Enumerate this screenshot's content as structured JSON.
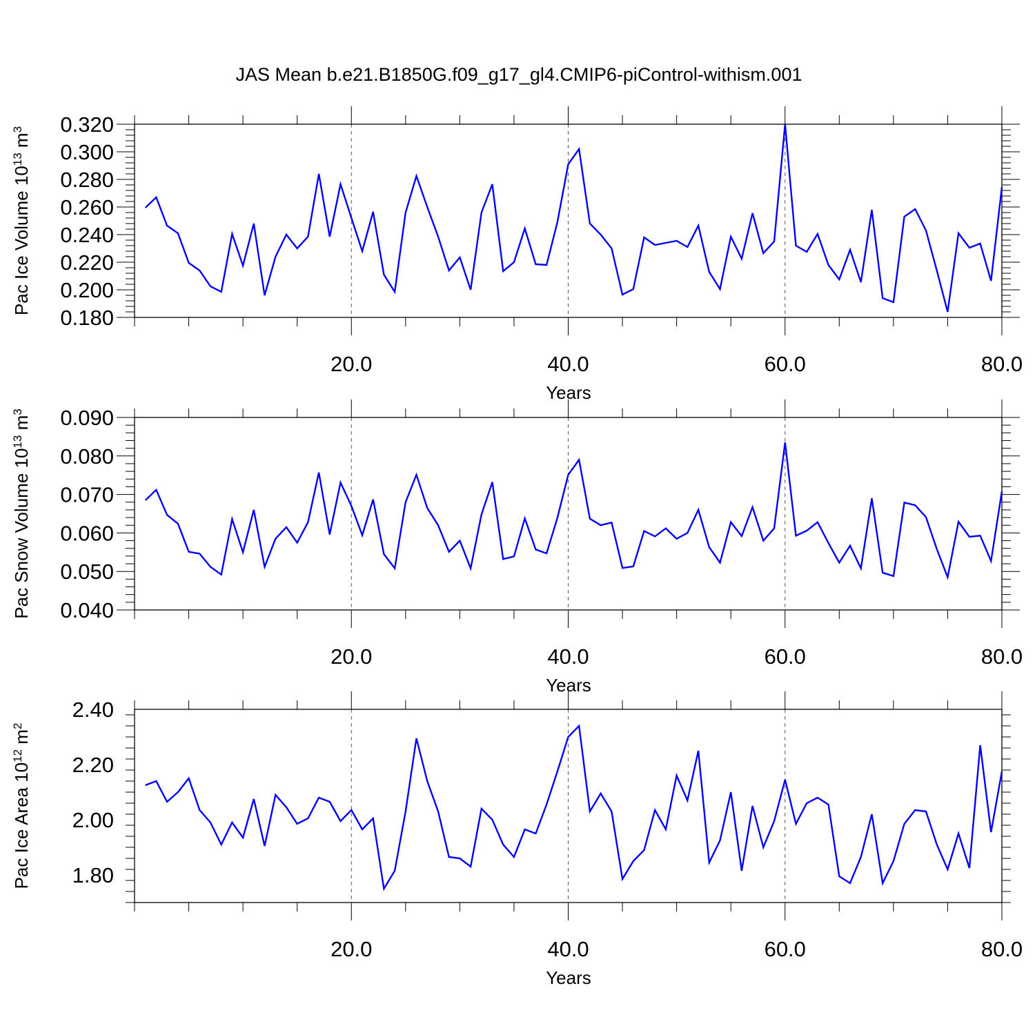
{
  "title": "JAS Mean b.e21.B1850G.f09_g17_gl4.CMIP6-piControl-withism.001",
  "colors": {
    "series": "#0000ff",
    "axis": "#000000",
    "grid": "#555555"
  },
  "chart_data": [
    {
      "type": "line",
      "ylabel": {
        "text": "Pac Ice Volume 10",
        "exp": "13",
        "unit": " m",
        "unit_exp": "3"
      },
      "xlabel": "Years",
      "xlim": [
        0,
        80
      ],
      "ylim": [
        0.18,
        0.32
      ],
      "yticks": [
        "0.180",
        "0.200",
        "0.220",
        "0.240",
        "0.260",
        "0.280",
        "0.300",
        "0.320"
      ],
      "xticks": [
        "20.0",
        "40.0",
        "60.0",
        "80.0"
      ],
      "vgrid": [
        20,
        40,
        60
      ],
      "x_start": 1,
      "values": [
        0.2595,
        0.267,
        0.2465,
        0.241,
        0.2195,
        0.214,
        0.2025,
        0.1985,
        0.2405,
        0.2175,
        0.248,
        0.196,
        0.224,
        0.24,
        0.23,
        0.2385,
        0.284,
        0.2385,
        0.2765,
        0.252,
        0.228,
        0.2565,
        0.211,
        0.1985,
        0.256,
        0.2825,
        0.26,
        0.2385,
        0.214,
        0.2235,
        0.2,
        0.256,
        0.2765,
        0.2135,
        0.22,
        0.2445,
        0.2185,
        0.218,
        0.249,
        0.291,
        0.302,
        0.248,
        0.24,
        0.23,
        0.1965,
        0.2005,
        0.238,
        0.2325,
        0.234,
        0.2355,
        0.231,
        0.2465,
        0.213,
        0.2005,
        0.2385,
        0.2225,
        0.2555,
        0.2265,
        0.235,
        0.32,
        0.232,
        0.2275,
        0.2405,
        0.218,
        0.2075,
        0.229,
        0.2055,
        0.258,
        0.194,
        0.191,
        0.253,
        0.2585,
        0.243,
        0.214,
        0.184,
        0.241,
        0.2305,
        0.2335,
        0.2065,
        0.2745
      ]
    },
    {
      "type": "line",
      "ylabel": {
        "text": "Pac Snow Volume 10",
        "exp": "13",
        "unit": " m",
        "unit_exp": "3"
      },
      "xlabel": "Years",
      "xlim": [
        0,
        80
      ],
      "ylim": [
        0.04,
        0.09
      ],
      "yticks": [
        "0.040",
        "0.050",
        "0.060",
        "0.070",
        "0.080",
        "0.090"
      ],
      "xticks": [
        "20.0",
        "40.0",
        "60.0",
        "80.0"
      ],
      "vgrid": [
        20,
        40,
        60
      ],
      "x_start": 1,
      "values": [
        0.0685,
        0.0712,
        0.0647,
        0.0624,
        0.0551,
        0.0546,
        0.0512,
        0.0492,
        0.0636,
        0.055,
        0.066,
        0.0512,
        0.0585,
        0.0615,
        0.0575,
        0.0628,
        0.0757,
        0.0596,
        0.0731,
        0.067,
        0.0594,
        0.0687,
        0.0545,
        0.0508,
        0.068,
        0.0751,
        0.0665,
        0.062,
        0.0551,
        0.058,
        0.0508,
        0.0648,
        0.0732,
        0.0532,
        0.0539,
        0.0638,
        0.0557,
        0.0547,
        0.0639,
        0.0751,
        0.079,
        0.0637,
        0.062,
        0.0627,
        0.0509,
        0.0513,
        0.0605,
        0.0591,
        0.0612,
        0.0585,
        0.06,
        0.066,
        0.0563,
        0.0523,
        0.0628,
        0.0592,
        0.0667,
        0.058,
        0.0612,
        0.0835,
        0.0593,
        0.0606,
        0.0628,
        0.0574,
        0.0523,
        0.0567,
        0.0508,
        0.069,
        0.0497,
        0.0488,
        0.0679,
        0.0672,
        0.0641,
        0.0558,
        0.0485,
        0.0629,
        0.059,
        0.0593,
        0.0527,
        0.0708
      ]
    },
    {
      "type": "line",
      "ylabel": {
        "text": "Pac Ice Area 10",
        "exp": "12",
        "unit": " m",
        "unit_exp": "2"
      },
      "xlabel": "Years",
      "xlim": [
        0,
        80
      ],
      "ylim": [
        1.7,
        2.4
      ],
      "yticks": [
        "1.80",
        "2.00",
        "2.20",
        "2.40"
      ],
      "ytick_values": [
        1.8,
        2.0,
        2.2,
        2.4
      ],
      "xticks": [
        "20.0",
        "40.0",
        "60.0",
        "80.0"
      ],
      "vgrid": [
        20,
        40,
        60
      ],
      "x_start": 1,
      "values": [
        2.125,
        2.14,
        2.065,
        2.1,
        2.15,
        2.035,
        1.99,
        1.91,
        1.99,
        1.935,
        2.075,
        1.905,
        2.09,
        2.045,
        1.985,
        2.005,
        2.08,
        2.065,
        1.995,
        2.035,
        1.965,
        2.005,
        1.75,
        1.815,
        2.03,
        2.295,
        2.14,
        2.03,
        1.865,
        1.86,
        1.83,
        2.04,
        2.0,
        1.91,
        1.865,
        1.965,
        1.95,
        2.055,
        2.175,
        2.3,
        2.34,
        2.03,
        2.095,
        2.03,
        1.785,
        1.85,
        1.89,
        2.035,
        1.965,
        2.16,
        2.07,
        2.25,
        1.845,
        1.925,
        2.1,
        1.815,
        2.05,
        1.9,
        1.995,
        2.145,
        1.985,
        2.06,
        2.08,
        2.055,
        1.795,
        1.77,
        1.865,
        2.02,
        1.77,
        1.85,
        1.985,
        2.035,
        2.03,
        1.91,
        1.82,
        1.95,
        1.825,
        2.27,
        1.955,
        2.175
      ]
    }
  ]
}
